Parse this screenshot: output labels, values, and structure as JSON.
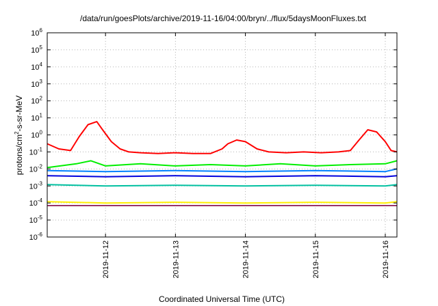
{
  "chart_data": {
    "type": "line",
    "title": "/data/run/goesPlots/archive/2019-11-16/04:00/bryn/../flux/5daysMoonFluxes.txt",
    "xlabel": "Coordinated Universal Time (UTC)",
    "ylabel": {
      "base": "protons/cm",
      "sup": "2",
      "rest": "-s-sr-MeV"
    },
    "y_scale": "log",
    "ylim": [
      1e-06,
      1000000.0
    ],
    "xlim": [
      "2019-11-11T04:00",
      "2019-11-16T04:00"
    ],
    "grid": true,
    "legend": "none",
    "y_ticks": [
      {
        "value": 1e-06,
        "base": "10",
        "exp": "-6"
      },
      {
        "value": 1e-05,
        "base": "10",
        "exp": "-5"
      },
      {
        "value": 0.0001,
        "base": "10",
        "exp": "-4"
      },
      {
        "value": 0.001,
        "base": "10",
        "exp": "-3"
      },
      {
        "value": 0.01,
        "base": "10",
        "exp": "-2"
      },
      {
        "value": 0.1,
        "base": "10",
        "exp": "-1"
      },
      {
        "value": 1.0,
        "base": "10",
        "exp": "0"
      },
      {
        "value": 10.0,
        "base": "10",
        "exp": "1"
      },
      {
        "value": 100.0,
        "base": "10",
        "exp": "2"
      },
      {
        "value": 1000.0,
        "base": "10",
        "exp": "3"
      },
      {
        "value": 10000.0,
        "base": "10",
        "exp": "4"
      },
      {
        "value": 100000.0,
        "base": "10",
        "exp": "5"
      },
      {
        "value": 1000000.0,
        "base": "10",
        "exp": "6"
      }
    ],
    "x_ticks": [
      {
        "value": "2019-11-12T00:00",
        "label": "2019-11-12"
      },
      {
        "value": "2019-11-13T00:00",
        "label": "2019-11-13"
      },
      {
        "value": "2019-11-14T00:00",
        "label": "2019-11-14"
      },
      {
        "value": "2019-11-15T00:00",
        "label": "2019-11-15"
      },
      {
        "value": "2019-11-16T00:00",
        "label": "2019-11-16"
      }
    ],
    "series": [
      {
        "color": "#ff0000",
        "x": [
          "2019-11-11T04:00",
          "2019-11-11T08:00",
          "2019-11-11T12:00",
          "2019-11-11T15:00",
          "2019-11-11T18:00",
          "2019-11-11T21:00",
          "2019-11-11T23:00",
          "2019-11-12T02:00",
          "2019-11-12T05:00",
          "2019-11-12T08:00",
          "2019-11-12T12:00",
          "2019-11-12T18:00",
          "2019-11-13T00:00",
          "2019-11-13T06:00",
          "2019-11-13T12:00",
          "2019-11-13T16:00",
          "2019-11-13T18:00",
          "2019-11-13T21:00",
          "2019-11-14T00:00",
          "2019-11-14T04:00",
          "2019-11-14T08:00",
          "2019-11-14T14:00",
          "2019-11-14T20:00",
          "2019-11-15T02:00",
          "2019-11-15T08:00",
          "2019-11-15T12:00",
          "2019-11-15T15:00",
          "2019-11-15T18:00",
          "2019-11-15T21:00",
          "2019-11-16T00:00",
          "2019-11-16T02:00",
          "2019-11-16T04:00"
        ],
        "y": [
          0.3,
          0.15,
          0.12,
          0.8,
          4.0,
          6.0,
          2.0,
          0.4,
          0.15,
          0.1,
          0.09,
          0.08,
          0.09,
          0.08,
          0.08,
          0.15,
          0.3,
          0.5,
          0.4,
          0.15,
          0.1,
          0.09,
          0.1,
          0.09,
          0.1,
          0.12,
          0.5,
          2.0,
          1.5,
          0.4,
          0.12,
          0.1
        ]
      },
      {
        "color": "#00ee00",
        "x": [
          "2019-11-11T04:00",
          "2019-11-11T14:00",
          "2019-11-11T19:00",
          "2019-11-12T00:00",
          "2019-11-12T12:00",
          "2019-11-13T00:00",
          "2019-11-13T12:00",
          "2019-11-14T00:00",
          "2019-11-14T12:00",
          "2019-11-15T00:00",
          "2019-11-15T12:00",
          "2019-11-16T00:00",
          "2019-11-16T04:00"
        ],
        "y": [
          0.012,
          0.02,
          0.03,
          0.015,
          0.02,
          0.015,
          0.018,
          0.015,
          0.02,
          0.015,
          0.018,
          0.02,
          0.03
        ]
      },
      {
        "color": "#0080ff",
        "x": [
          "2019-11-11T04:00",
          "2019-11-12T00:00",
          "2019-11-13T00:00",
          "2019-11-14T00:00",
          "2019-11-15T00:00",
          "2019-11-16T00:00",
          "2019-11-16T04:00"
        ],
        "y": [
          0.008,
          0.007,
          0.008,
          0.007,
          0.008,
          0.007,
          0.01
        ]
      },
      {
        "color": "#0000dd",
        "x": [
          "2019-11-11T04:00",
          "2019-11-12T00:00",
          "2019-11-13T00:00",
          "2019-11-14T00:00",
          "2019-11-15T00:00",
          "2019-11-16T00:00",
          "2019-11-16T04:00"
        ],
        "y": [
          0.004,
          0.0035,
          0.004,
          0.0035,
          0.004,
          0.0035,
          0.004
        ]
      },
      {
        "color": "#00c0a0",
        "x": [
          "2019-11-11T04:00",
          "2019-11-12T00:00",
          "2019-11-13T00:00",
          "2019-11-14T00:00",
          "2019-11-15T00:00",
          "2019-11-16T00:00",
          "2019-11-16T04:00"
        ],
        "y": [
          0.0012,
          0.001,
          0.0011,
          0.001,
          0.0011,
          0.001,
          0.0012
        ]
      },
      {
        "color": "#ffee00",
        "x": [
          "2019-11-11T04:00",
          "2019-11-12T00:00",
          "2019-11-13T00:00",
          "2019-11-14T00:00",
          "2019-11-15T00:00",
          "2019-11-16T00:00",
          "2019-11-16T04:00"
        ],
        "y": [
          0.00012,
          0.0001,
          0.00011,
          0.0001,
          0.00011,
          0.0001,
          0.00012
        ]
      },
      {
        "color": "#993366",
        "x": [
          "2019-11-11T04:00",
          "2019-11-12T00:00",
          "2019-11-13T00:00",
          "2019-11-14T00:00",
          "2019-11-15T00:00",
          "2019-11-16T00:00",
          "2019-11-16T04:00"
        ],
        "y": [
          7e-05,
          7e-05,
          7e-05,
          7e-05,
          7e-05,
          7e-05,
          7e-05
        ]
      }
    ]
  }
}
